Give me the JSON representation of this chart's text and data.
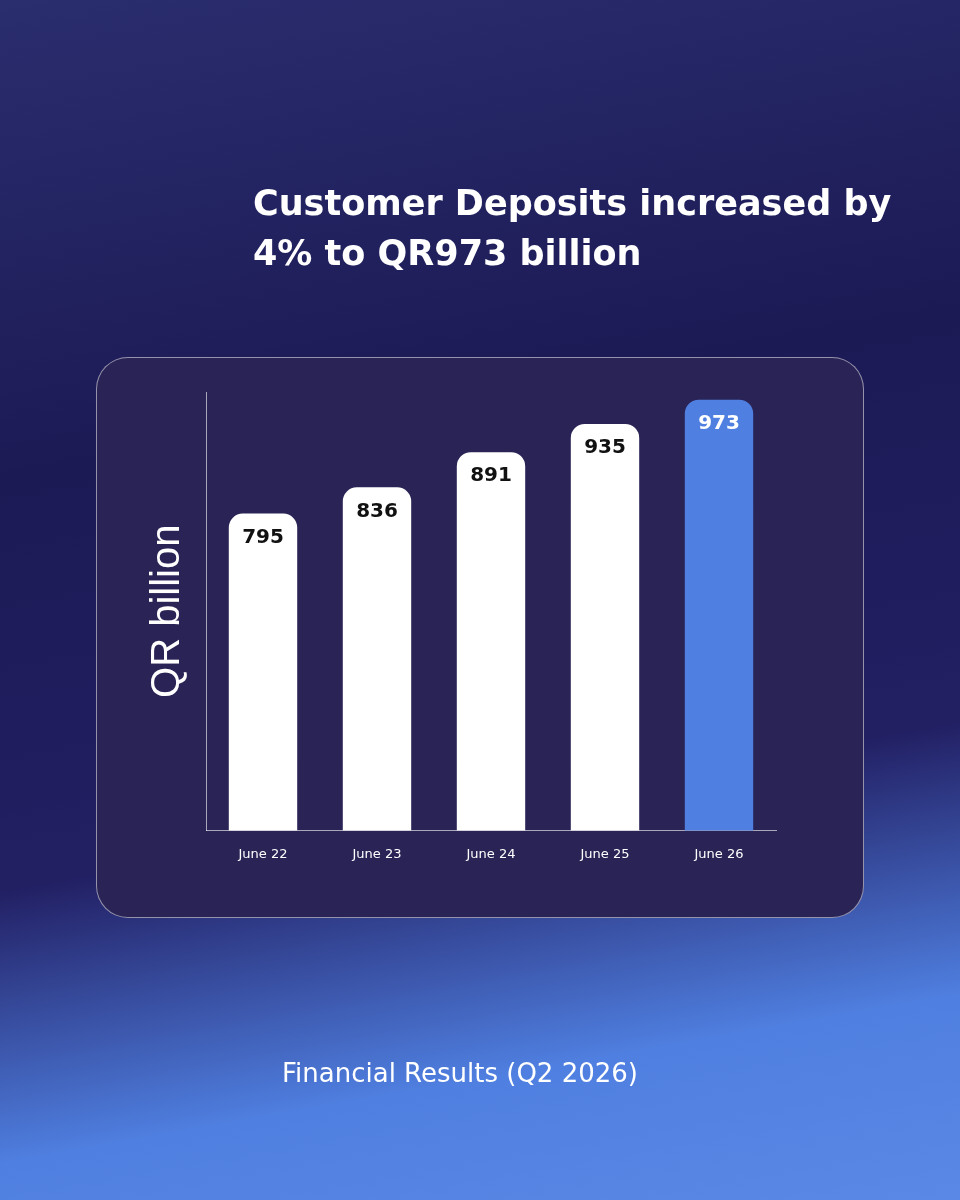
{
  "chart_data": {
    "type": "bar",
    "title": "Customer Deposits increased by 4% to QR973 billion",
    "ylabel": "QR billion",
    "categories": [
      "June 22",
      "June 23",
      "June 24",
      "June 25",
      "June 26"
    ],
    "values": [
      795,
      836,
      891,
      935,
      973
    ],
    "colors": [
      "#ffffff",
      "#ffffff",
      "#ffffff",
      "#ffffff",
      "#4f7fe0"
    ],
    "ylim": [
      300,
      985
    ],
    "tick_labels": "x",
    "grid": false,
    "legend": false,
    "data_labels": true,
    "annotations": [
      "Financial Results (Q2 2026)"
    ]
  }
}
